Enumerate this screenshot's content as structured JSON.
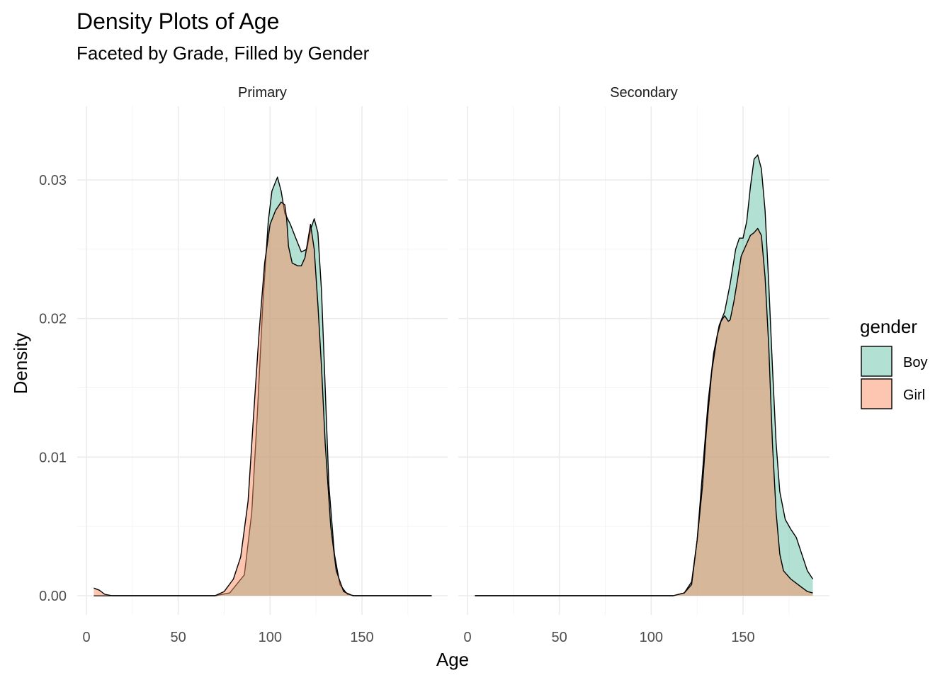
{
  "chart_data": {
    "type": "area",
    "title": "Density Plots of Age",
    "subtitle": "Faceted by Grade, Filled by Gender",
    "xlabel": "Age",
    "ylabel": "Density",
    "xlim": [
      0,
      188
    ],
    "ylim": [
      0,
      0.034
    ],
    "x_ticks": [
      0,
      50,
      100,
      150
    ],
    "x_tick_labels": [
      "0",
      "50",
      "100",
      "150"
    ],
    "y_ticks": [
      0,
      0.01,
      0.02,
      0.03
    ],
    "y_tick_labels": [
      "0.00",
      "0.01",
      "0.02",
      "0.03"
    ],
    "grid": true,
    "legend": {
      "title": "gender",
      "position": "right",
      "entries": [
        {
          "label": "Boy",
          "color": "#66c2a5"
        },
        {
          "label": "Girl",
          "color": "#fc8d62"
        }
      ]
    },
    "fill_alpha": 0.5,
    "facets": [
      {
        "label": "Primary",
        "series": [
          {
            "name": "Boy",
            "color": "#66c2a5",
            "points": [
              [
                4,
                0
              ],
              [
                70,
                0
              ],
              [
                78,
                0.0002
              ],
              [
                86,
                0.0015
              ],
              [
                90,
                0.006
              ],
              [
                93,
                0.013
              ],
              [
                96,
                0.021
              ],
              [
                99,
                0.027
              ],
              [
                101,
                0.0292
              ],
              [
                104,
                0.0302
              ],
              [
                106,
                0.0292
              ],
              [
                108,
                0.0276
              ],
              [
                111,
                0.0268
              ],
              [
                114,
                0.0258
              ],
              [
                117,
                0.0248
              ],
              [
                120,
                0.025
              ],
              [
                122,
                0.0264
              ],
              [
                124,
                0.0272
              ],
              [
                126,
                0.0262
              ],
              [
                128,
                0.022
              ],
              [
                130,
                0.015
              ],
              [
                132,
                0.008
              ],
              [
                135,
                0.003
              ],
              [
                138,
                0.0008
              ],
              [
                142,
                0.0001
              ],
              [
                146,
                0
              ],
              [
                188,
                0
              ]
            ]
          },
          {
            "name": "Girl",
            "color": "#fc8d62",
            "points": [
              [
                4,
                0.00055
              ],
              [
                7,
                0.0004
              ],
              [
                10,
                0.0001
              ],
              [
                14,
                0
              ],
              [
                70,
                0
              ],
              [
                75,
                0.0003
              ],
              [
                80,
                0.0012
              ],
              [
                84,
                0.0028
              ],
              [
                88,
                0.0068
              ],
              [
                91,
                0.013
              ],
              [
                94,
                0.019
              ],
              [
                97,
                0.024
              ],
              [
                100,
                0.0268
              ],
              [
                103,
                0.0278
              ],
              [
                106,
                0.0284
              ],
              [
                108,
                0.0282
              ],
              [
                109,
                0.0272
              ],
              [
                110,
                0.0252
              ],
              [
                112,
                0.024
              ],
              [
                115,
                0.0238
              ],
              [
                117,
                0.0238
              ],
              [
                119,
                0.0244
              ],
              [
                121,
                0.026
              ],
              [
                122,
                0.0268
              ],
              [
                124,
                0.025
              ],
              [
                126,
                0.021
              ],
              [
                128,
                0.0165
              ],
              [
                130,
                0.011
              ],
              [
                133,
                0.005
              ],
              [
                136,
                0.0018
              ],
              [
                140,
                0.0003
              ],
              [
                145,
                0
              ],
              [
                188,
                0
              ]
            ]
          }
        ]
      },
      {
        "label": "Secondary",
        "series": [
          {
            "name": "Boy",
            "color": "#66c2a5",
            "points": [
              [
                4,
                0
              ],
              [
                112,
                0
              ],
              [
                118,
                0.0002
              ],
              [
                122,
                0.001
              ],
              [
                125,
                0.004
              ],
              [
                128,
                0.009
              ],
              [
                131,
                0.014
              ],
              [
                134,
                0.0175
              ],
              [
                137,
                0.0195
              ],
              [
                140,
                0.0205
              ],
              [
                143,
                0.0225
              ],
              [
                146,
                0.025
              ],
              [
                148,
                0.0258
              ],
              [
                150,
                0.0258
              ],
              [
                152,
                0.027
              ],
              [
                154,
                0.0295
              ],
              [
                156,
                0.0315
              ],
              [
                158,
                0.0318
              ],
              [
                160,
                0.0308
              ],
              [
                162,
                0.0278
              ],
              [
                164,
                0.0225
              ],
              [
                166,
                0.0165
              ],
              [
                168,
                0.011
              ],
              [
                170,
                0.0075
              ],
              [
                173,
                0.0055
              ],
              [
                176,
                0.0048
              ],
              [
                179,
                0.0042
              ],
              [
                182,
                0.003
              ],
              [
                185,
                0.0018
              ],
              [
                188,
                0.0012
              ]
            ]
          },
          {
            "name": "Girl",
            "color": "#fc8d62",
            "points": [
              [
                4,
                0
              ],
              [
                112,
                0
              ],
              [
                118,
                0.0002
              ],
              [
                122,
                0.0008
              ],
              [
                125,
                0.004
              ],
              [
                128,
                0.008
              ],
              [
                130,
                0.0118
              ],
              [
                133,
                0.0162
              ],
              [
                136,
                0.0188
              ],
              [
                138,
                0.0198
              ],
              [
                140,
                0.0202
              ],
              [
                142,
                0.0198
              ],
              [
                143,
                0.0199
              ],
              [
                145,
                0.0212
              ],
              [
                147,
                0.0228
              ],
              [
                149,
                0.0245
              ],
              [
                152,
                0.0254
              ],
              [
                154,
                0.026
              ],
              [
                156,
                0.0262
              ],
              [
                158,
                0.0265
              ],
              [
                160,
                0.026
              ],
              [
                162,
                0.023
              ],
              [
                164,
                0.018
              ],
              [
                166,
                0.011
              ],
              [
                168,
                0.006
              ],
              [
                170,
                0.003
              ],
              [
                172,
                0.0018
              ],
              [
                176,
                0.0012
              ],
              [
                179,
                0.0009
              ],
              [
                182,
                0.0006
              ],
              [
                185,
                0.0003
              ],
              [
                188,
                0.0002
              ]
            ]
          }
        ]
      }
    ]
  }
}
